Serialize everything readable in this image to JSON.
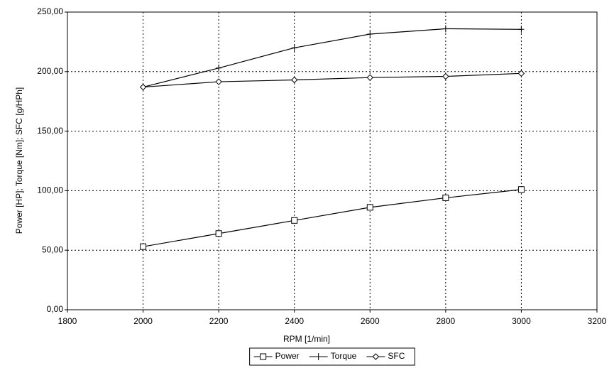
{
  "chart_data": {
    "type": "line",
    "x_label": "RPM [1/min]",
    "y_label": "Power [HP]; Torque [Nm]; SFC [g/HPh]",
    "x": [
      2000,
      2200,
      2400,
      2600,
      2800,
      3000
    ],
    "series": [
      {
        "name": "Power",
        "color": "#000000",
        "marker": "square",
        "values": [
          53,
          64,
          75,
          86,
          94,
          101
        ]
      },
      {
        "name": "Torque",
        "color": "#000000",
        "marker": "plus",
        "values": [
          187,
          203,
          220,
          231.5,
          236,
          235.5
        ]
      },
      {
        "name": "SFC",
        "color": "#000000",
        "marker": "diamond",
        "values": [
          187,
          191.5,
          193,
          195,
          196,
          198.5
        ]
      }
    ],
    "xlim": [
      1800,
      3200
    ],
    "xticks": [
      1800,
      2000,
      2200,
      2400,
      2600,
      2800,
      3000,
      3200
    ],
    "ylim": [
      0,
      250
    ],
    "yticks": [
      {
        "value": 0,
        "label": "0,00"
      },
      {
        "value": 50,
        "label": "50,00"
      },
      {
        "value": 100,
        "label": "100,00"
      },
      {
        "value": 150,
        "label": "150,00"
      },
      {
        "value": 200,
        "label": "200,00"
      },
      {
        "value": 250,
        "label": "250,00"
      }
    ],
    "grid": true,
    "legend": "bottom"
  }
}
